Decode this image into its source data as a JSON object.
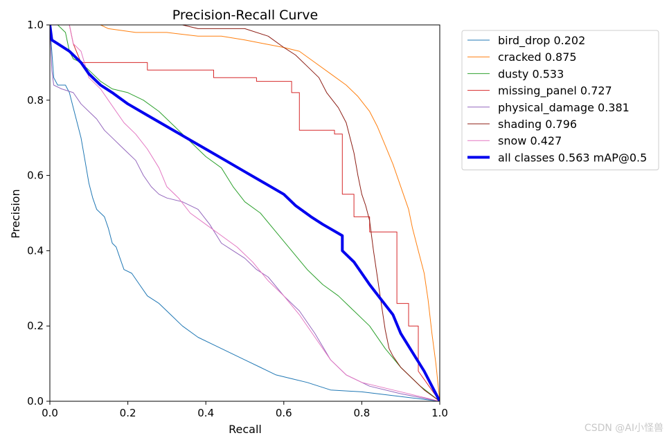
{
  "chart_data": {
    "type": "line",
    "title": "Precision-Recall Curve",
    "xlabel": "Recall",
    "ylabel": "Precision",
    "xlim": [
      0,
      1
    ],
    "ylim": [
      0,
      1
    ],
    "xticks": [
      "0.0",
      "0.2",
      "0.4",
      "0.6",
      "0.8",
      "1.0"
    ],
    "yticks": [
      "0.0",
      "0.2",
      "0.4",
      "0.6",
      "0.8",
      "1.0"
    ],
    "grid": false,
    "legend_position": "outside-right",
    "series": [
      {
        "name": "bird_drop 0.202",
        "color": "#1f77b4",
        "width": 1,
        "points": [
          [
            0,
            1.0
          ],
          [
            0.005,
            0.93
          ],
          [
            0.01,
            0.86
          ],
          [
            0.02,
            0.84
          ],
          [
            0.04,
            0.84
          ],
          [
            0.05,
            0.82
          ],
          [
            0.06,
            0.78
          ],
          [
            0.07,
            0.74
          ],
          [
            0.08,
            0.7
          ],
          [
            0.09,
            0.64
          ],
          [
            0.1,
            0.58
          ],
          [
            0.11,
            0.54
          ],
          [
            0.12,
            0.51
          ],
          [
            0.14,
            0.49
          ],
          [
            0.15,
            0.46
          ],
          [
            0.16,
            0.42
          ],
          [
            0.17,
            0.41
          ],
          [
            0.18,
            0.38
          ],
          [
            0.19,
            0.35
          ],
          [
            0.21,
            0.34
          ],
          [
            0.23,
            0.31
          ],
          [
            0.25,
            0.28
          ],
          [
            0.28,
            0.26
          ],
          [
            0.31,
            0.23
          ],
          [
            0.34,
            0.2
          ],
          [
            0.38,
            0.17
          ],
          [
            0.42,
            0.15
          ],
          [
            0.46,
            0.13
          ],
          [
            0.5,
            0.11
          ],
          [
            0.54,
            0.09
          ],
          [
            0.58,
            0.07
          ],
          [
            0.62,
            0.06
          ],
          [
            0.66,
            0.05
          ],
          [
            0.72,
            0.03
          ],
          [
            0.8,
            0.025
          ],
          [
            1.0,
            0.0
          ]
        ]
      },
      {
        "name": "cracked 0.875",
        "color": "#ff7f0e",
        "width": 1,
        "points": [
          [
            0,
            1.0
          ],
          [
            0.13,
            1.0
          ],
          [
            0.15,
            0.99
          ],
          [
            0.22,
            0.98
          ],
          [
            0.3,
            0.98
          ],
          [
            0.38,
            0.97
          ],
          [
            0.44,
            0.97
          ],
          [
            0.5,
            0.96
          ],
          [
            0.55,
            0.95
          ],
          [
            0.6,
            0.94
          ],
          [
            0.64,
            0.93
          ],
          [
            0.68,
            0.9
          ],
          [
            0.72,
            0.87
          ],
          [
            0.76,
            0.84
          ],
          [
            0.79,
            0.81
          ],
          [
            0.82,
            0.77
          ],
          [
            0.84,
            0.73
          ],
          [
            0.86,
            0.68
          ],
          [
            0.88,
            0.63
          ],
          [
            0.9,
            0.57
          ],
          [
            0.92,
            0.51
          ],
          [
            0.93,
            0.46
          ],
          [
            0.945,
            0.4
          ],
          [
            0.96,
            0.34
          ],
          [
            0.97,
            0.27
          ],
          [
            0.98,
            0.18
          ],
          [
            0.99,
            0.1
          ],
          [
            1.0,
            0.0
          ]
        ]
      },
      {
        "name": "dusty 0.533",
        "color": "#2ca02c",
        "width": 1,
        "points": [
          [
            0,
            1.0
          ],
          [
            0.02,
            1.0
          ],
          [
            0.04,
            0.98
          ],
          [
            0.05,
            0.93
          ],
          [
            0.06,
            0.91
          ],
          [
            0.08,
            0.9
          ],
          [
            0.1,
            0.88
          ],
          [
            0.13,
            0.85
          ],
          [
            0.16,
            0.83
          ],
          [
            0.2,
            0.82
          ],
          [
            0.24,
            0.8
          ],
          [
            0.28,
            0.77
          ],
          [
            0.32,
            0.73
          ],
          [
            0.36,
            0.69
          ],
          [
            0.4,
            0.65
          ],
          [
            0.44,
            0.62
          ],
          [
            0.47,
            0.57
          ],
          [
            0.5,
            0.53
          ],
          [
            0.54,
            0.5
          ],
          [
            0.58,
            0.45
          ],
          [
            0.62,
            0.4
          ],
          [
            0.66,
            0.35
          ],
          [
            0.7,
            0.31
          ],
          [
            0.74,
            0.28
          ],
          [
            0.78,
            0.24
          ],
          [
            0.82,
            0.2
          ],
          [
            0.86,
            0.14
          ],
          [
            0.9,
            0.09
          ],
          [
            0.95,
            0.04
          ],
          [
            1.0,
            0.0
          ]
        ]
      },
      {
        "name": "missing_panel 0.727",
        "color": "#d62728",
        "width": 1,
        "points": [
          [
            0,
            1.0
          ],
          [
            0.05,
            1.0
          ],
          [
            0.06,
            0.95
          ],
          [
            0.08,
            0.9
          ],
          [
            0.25,
            0.9
          ],
          [
            0.25,
            0.88
          ],
          [
            0.42,
            0.88
          ],
          [
            0.42,
            0.86
          ],
          [
            0.53,
            0.86
          ],
          [
            0.53,
            0.85
          ],
          [
            0.62,
            0.85
          ],
          [
            0.62,
            0.82
          ],
          [
            0.64,
            0.82
          ],
          [
            0.64,
            0.72
          ],
          [
            0.73,
            0.72
          ],
          [
            0.73,
            0.71
          ],
          [
            0.75,
            0.71
          ],
          [
            0.75,
            0.55
          ],
          [
            0.78,
            0.55
          ],
          [
            0.78,
            0.49
          ],
          [
            0.82,
            0.49
          ],
          [
            0.82,
            0.45
          ],
          [
            0.89,
            0.45
          ],
          [
            0.89,
            0.26
          ],
          [
            0.92,
            0.26
          ],
          [
            0.92,
            0.2
          ],
          [
            0.945,
            0.2
          ],
          [
            0.945,
            0.08
          ],
          [
            1.0,
            0.0
          ]
        ]
      },
      {
        "name": "physical_damage 0.381",
        "color": "#9467bd",
        "width": 1,
        "points": [
          [
            0,
            1.0
          ],
          [
            0.005,
            0.88
          ],
          [
            0.01,
            0.84
          ],
          [
            0.03,
            0.83
          ],
          [
            0.06,
            0.82
          ],
          [
            0.08,
            0.79
          ],
          [
            0.1,
            0.77
          ],
          [
            0.12,
            0.75
          ],
          [
            0.14,
            0.72
          ],
          [
            0.16,
            0.7
          ],
          [
            0.18,
            0.68
          ],
          [
            0.2,
            0.66
          ],
          [
            0.22,
            0.64
          ],
          [
            0.24,
            0.6
          ],
          [
            0.26,
            0.57
          ],
          [
            0.28,
            0.55
          ],
          [
            0.3,
            0.54
          ],
          [
            0.34,
            0.53
          ],
          [
            0.38,
            0.51
          ],
          [
            0.41,
            0.47
          ],
          [
            0.44,
            0.42
          ],
          [
            0.47,
            0.4
          ],
          [
            0.5,
            0.38
          ],
          [
            0.53,
            0.35
          ],
          [
            0.56,
            0.33
          ],
          [
            0.6,
            0.28
          ],
          [
            0.64,
            0.24
          ],
          [
            0.68,
            0.18
          ],
          [
            0.72,
            0.11
          ],
          [
            0.76,
            0.07
          ],
          [
            0.82,
            0.04
          ],
          [
            0.9,
            0.02
          ],
          [
            1.0,
            0.0
          ]
        ]
      },
      {
        "name": "shading 0.796",
        "color": "#8c1c13",
        "width": 1,
        "points": [
          [
            0,
            1.0
          ],
          [
            0.34,
            1.0
          ],
          [
            0.38,
            0.99
          ],
          [
            0.5,
            0.99
          ],
          [
            0.56,
            0.97
          ],
          [
            0.6,
            0.94
          ],
          [
            0.63,
            0.92
          ],
          [
            0.66,
            0.89
          ],
          [
            0.69,
            0.86
          ],
          [
            0.71,
            0.82
          ],
          [
            0.74,
            0.78
          ],
          [
            0.76,
            0.74
          ],
          [
            0.77,
            0.7
          ],
          [
            0.78,
            0.66
          ],
          [
            0.79,
            0.6
          ],
          [
            0.8,
            0.55
          ],
          [
            0.81,
            0.52
          ],
          [
            0.82,
            0.48
          ],
          [
            0.83,
            0.4
          ],
          [
            0.84,
            0.33
          ],
          [
            0.85,
            0.26
          ],
          [
            0.86,
            0.19
          ],
          [
            0.87,
            0.14
          ],
          [
            0.88,
            0.12
          ],
          [
            0.9,
            0.09
          ],
          [
            0.93,
            0.06
          ],
          [
            0.96,
            0.03
          ],
          [
            1.0,
            0.0
          ]
        ]
      },
      {
        "name": "snow 0.427",
        "color": "#e377c2",
        "width": 1,
        "points": [
          [
            0,
            1.0
          ],
          [
            0.05,
            1.0
          ],
          [
            0.06,
            0.95
          ],
          [
            0.08,
            0.93
          ],
          [
            0.1,
            0.86
          ],
          [
            0.13,
            0.83
          ],
          [
            0.15,
            0.8
          ],
          [
            0.17,
            0.77
          ],
          [
            0.19,
            0.74
          ],
          [
            0.22,
            0.71
          ],
          [
            0.25,
            0.67
          ],
          [
            0.28,
            0.62
          ],
          [
            0.3,
            0.57
          ],
          [
            0.33,
            0.54
          ],
          [
            0.36,
            0.5
          ],
          [
            0.4,
            0.47
          ],
          [
            0.44,
            0.44
          ],
          [
            0.48,
            0.41
          ],
          [
            0.52,
            0.37
          ],
          [
            0.56,
            0.32
          ],
          [
            0.6,
            0.28
          ],
          [
            0.64,
            0.23
          ],
          [
            0.68,
            0.17
          ],
          [
            0.72,
            0.11
          ],
          [
            0.76,
            0.07
          ],
          [
            0.8,
            0.05
          ],
          [
            0.88,
            0.03
          ],
          [
            1.0,
            0.0
          ]
        ]
      },
      {
        "name": "all classes 0.563 mAP@0.5",
        "color": "#0000ee",
        "width": 4,
        "points": [
          [
            0,
            1.0
          ],
          [
            0.005,
            0.96
          ],
          [
            0.02,
            0.95
          ],
          [
            0.05,
            0.93
          ],
          [
            0.08,
            0.9
          ],
          [
            0.1,
            0.87
          ],
          [
            0.13,
            0.84
          ],
          [
            0.16,
            0.82
          ],
          [
            0.2,
            0.79
          ],
          [
            0.25,
            0.76
          ],
          [
            0.3,
            0.73
          ],
          [
            0.35,
            0.7
          ],
          [
            0.4,
            0.67
          ],
          [
            0.45,
            0.64
          ],
          [
            0.5,
            0.61
          ],
          [
            0.55,
            0.58
          ],
          [
            0.6,
            0.55
          ],
          [
            0.63,
            0.52
          ],
          [
            0.67,
            0.49
          ],
          [
            0.7,
            0.47
          ],
          [
            0.75,
            0.44
          ],
          [
            0.75,
            0.4
          ],
          [
            0.78,
            0.37
          ],
          [
            0.8,
            0.34
          ],
          [
            0.82,
            0.31
          ],
          [
            0.85,
            0.27
          ],
          [
            0.88,
            0.23
          ],
          [
            0.9,
            0.18
          ],
          [
            0.93,
            0.13
          ],
          [
            0.96,
            0.08
          ],
          [
            0.98,
            0.04
          ],
          [
            1.0,
            0.0
          ]
        ]
      }
    ]
  },
  "watermark": "CSDN @AI小怪兽"
}
